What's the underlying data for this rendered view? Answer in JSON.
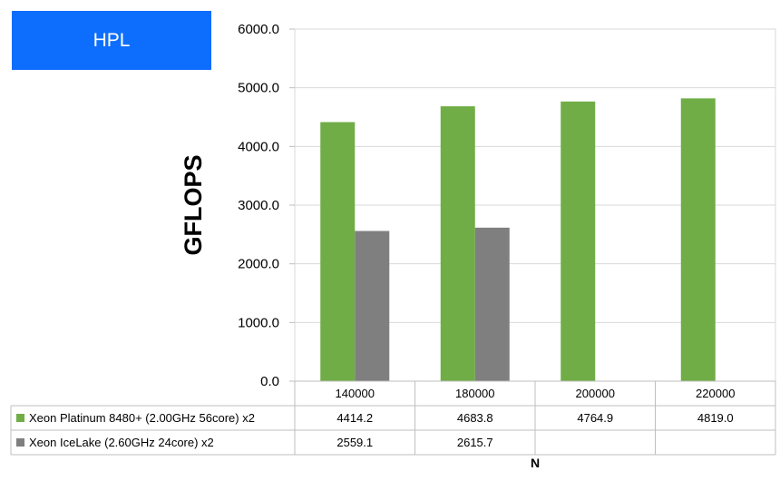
{
  "badge": {
    "label": "HPL"
  },
  "chart_data": {
    "type": "bar",
    "categories": [
      "140000",
      "180000",
      "200000",
      "220000"
    ],
    "series": [
      {
        "name": "Xeon Platinum 8480+ (2.00GHz 56core) x2",
        "color": "#70ad47",
        "values": [
          4414.2,
          4683.8,
          4764.9,
          4819.0
        ],
        "labels": [
          "4414.2",
          "4683.8",
          "4764.9",
          "4819.0"
        ]
      },
      {
        "name": "Xeon IceLake (2.60GHz 24core) x2",
        "color": "#7f7f7f",
        "values": [
          2559.1,
          2615.7,
          null,
          null
        ],
        "labels": [
          "2559.1",
          "2615.7",
          "",
          ""
        ]
      }
    ],
    "ylabel": "GFLOPS",
    "xlabel": "N",
    "ylim": [
      0,
      6000
    ],
    "yticks": [
      "0.0",
      "1000.0",
      "2000.0",
      "3000.0",
      "4000.0",
      "5000.0",
      "6000.0"
    ],
    "grid": true,
    "legend": "data-table"
  }
}
